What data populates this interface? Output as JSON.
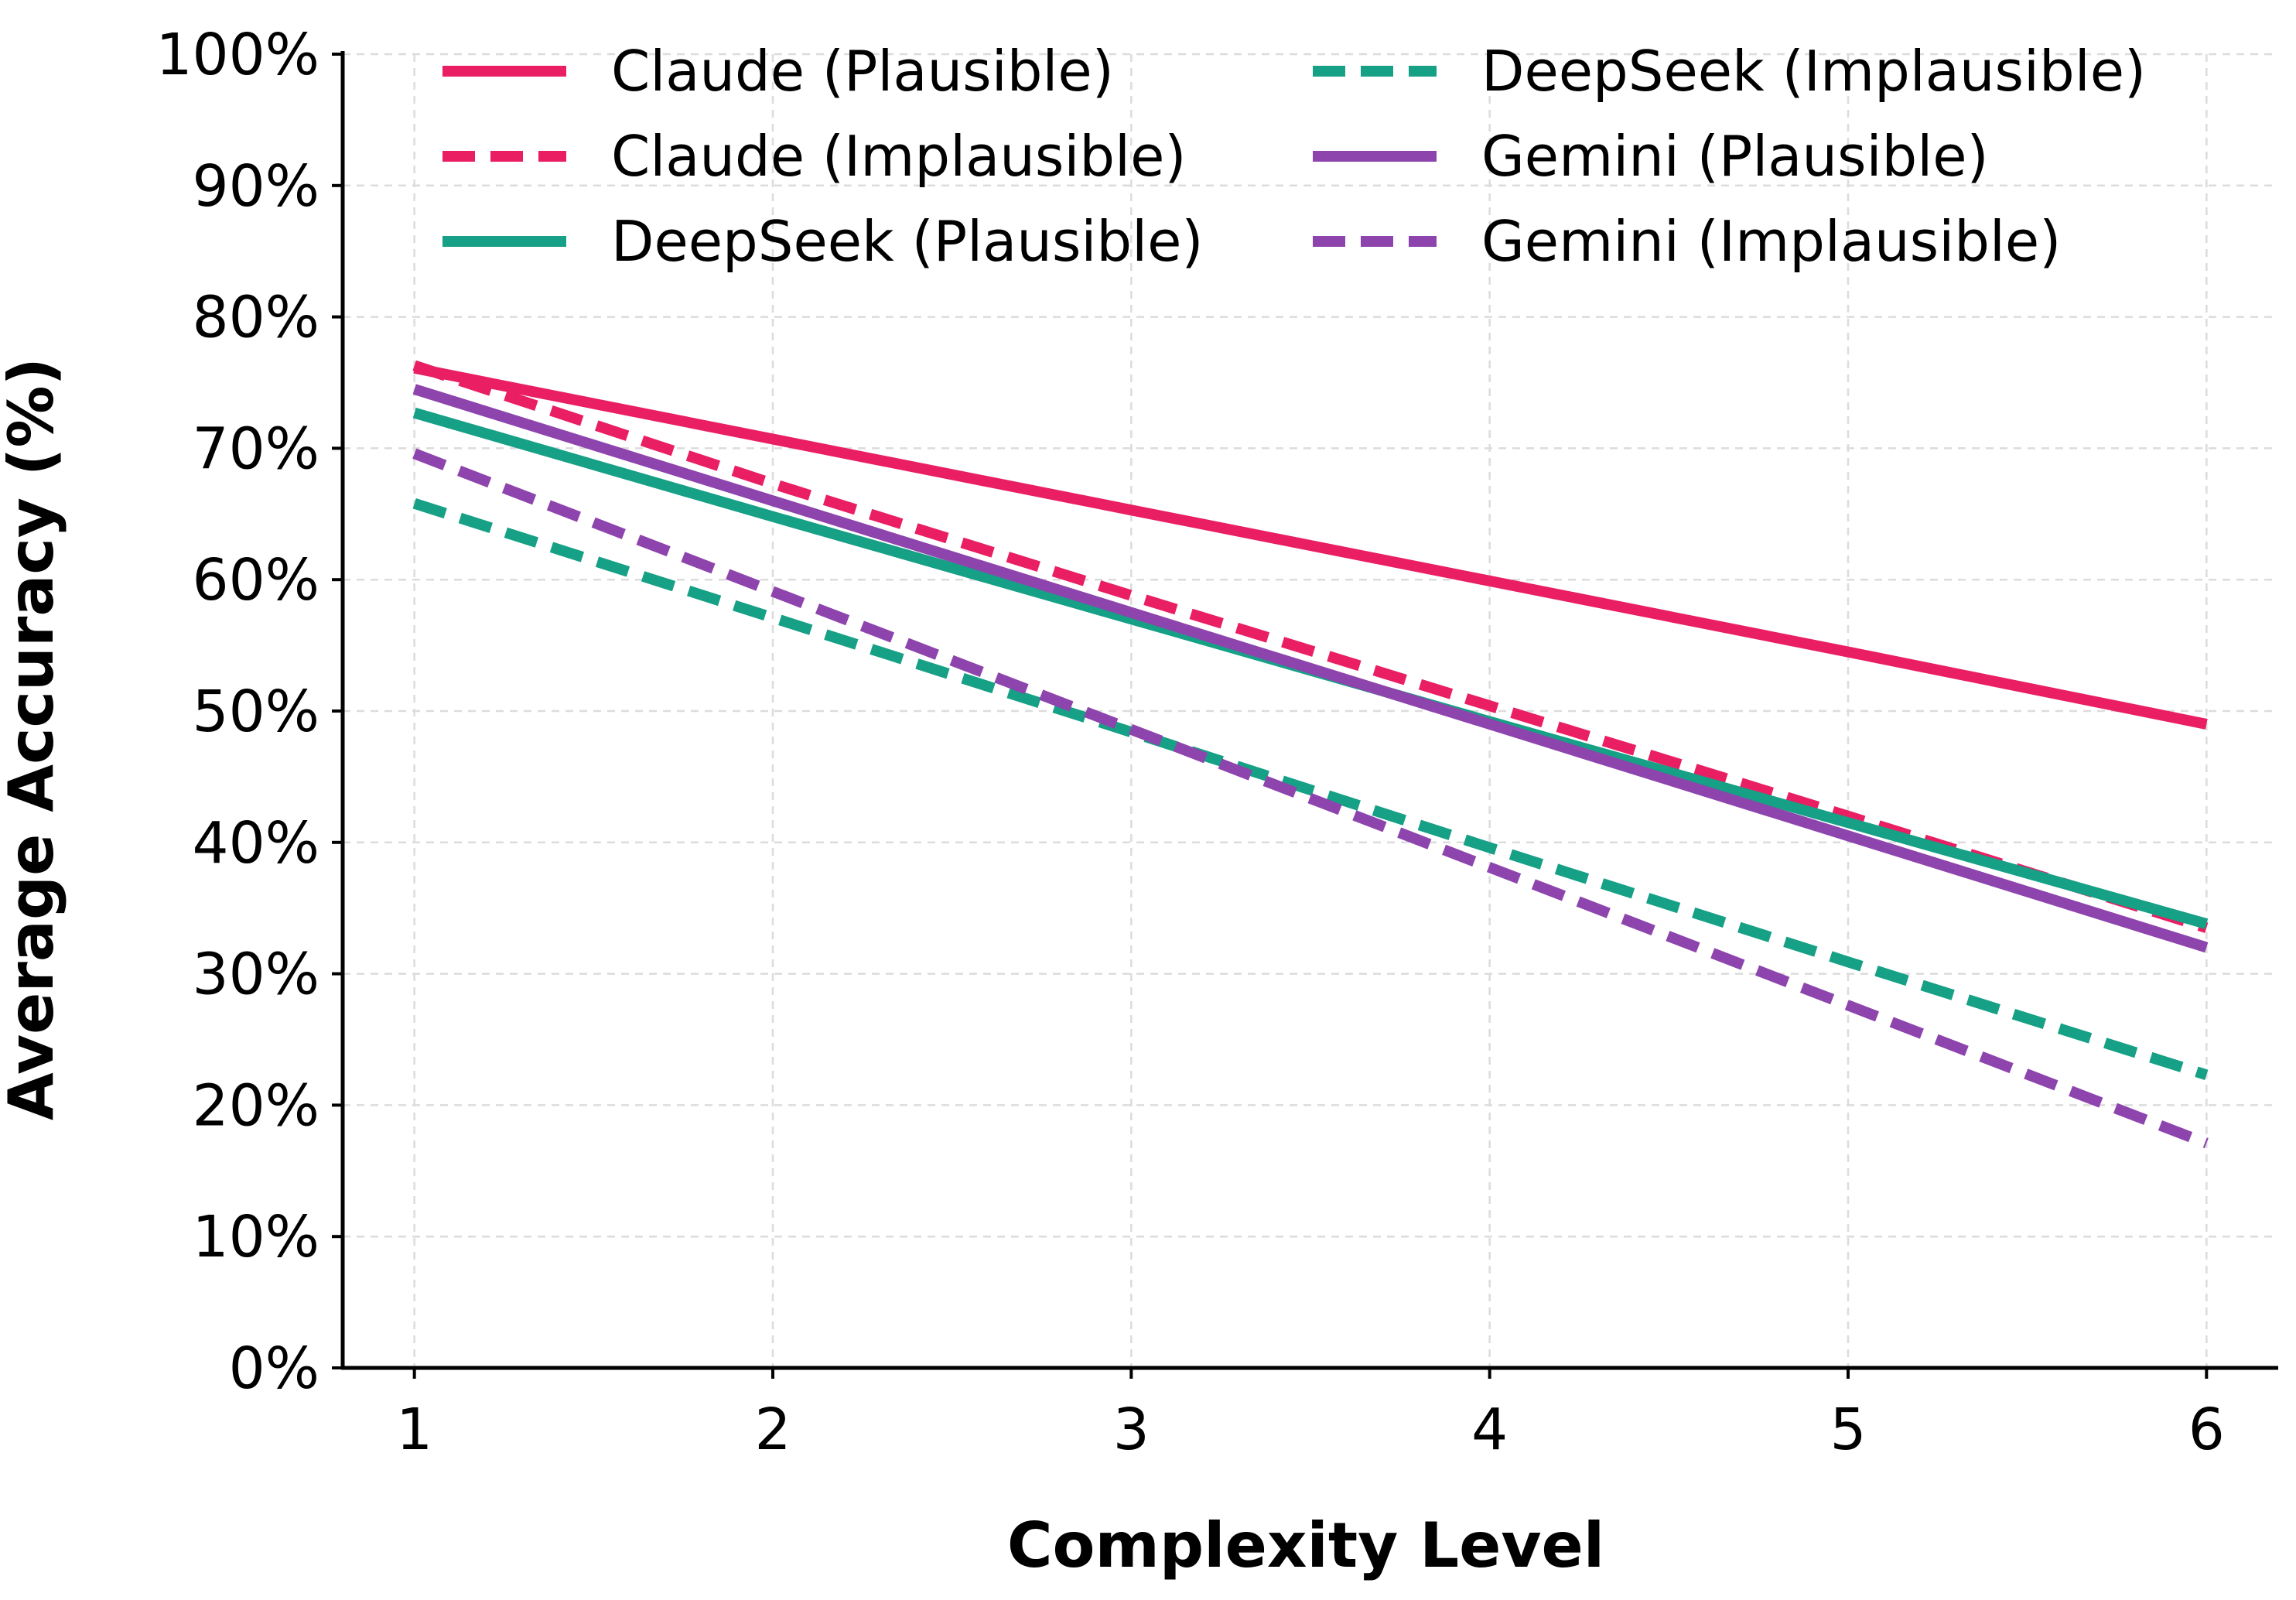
{
  "chart_data": {
    "type": "line",
    "title": "",
    "xlabel": "Complexity Level",
    "ylabel": "Average Accuracy (%)",
    "x": [
      1,
      2,
      3,
      4,
      5,
      6
    ],
    "x_tick_labels": [
      "1",
      "2",
      "3",
      "4",
      "5",
      "6"
    ],
    "xlim": [
      0.8,
      6.2
    ],
    "ylim": [
      0,
      100
    ],
    "y_ticks": [
      0,
      10,
      20,
      30,
      40,
      50,
      60,
      70,
      80,
      90,
      100
    ],
    "y_tick_labels": [
      "0%",
      "10%",
      "20%",
      "30%",
      "40%",
      "50%",
      "60%",
      "70%",
      "80%",
      "90%",
      "100%"
    ],
    "grid": true,
    "legend_position": "top, two columns",
    "series": [
      {
        "name": "Claude (Plausible)",
        "color": "#E91E63",
        "style": "solid",
        "values": [
          76.1,
          70.7,
          65.3,
          59.9,
          54.5,
          49.0
        ]
      },
      {
        "name": "Claude (Implausible)",
        "color": "#E91E63",
        "style": "dashed",
        "values": [
          76.3,
          67.3,
          58.8,
          50.4,
          42.0,
          33.5
        ]
      },
      {
        "name": "DeepSeek (Plausible)",
        "color": "#16A085",
        "style": "solid",
        "values": [
          72.7,
          64.8,
          57.0,
          49.2,
          41.5,
          33.8
        ]
      },
      {
        "name": "DeepSeek (Implausible)",
        "color": "#16A085",
        "style": "dashed",
        "values": [
          65.8,
          57.1,
          48.4,
          39.6,
          30.9,
          22.3
        ]
      },
      {
        "name": "Gemini (Plausible)",
        "color": "#8E44AD",
        "style": "solid",
        "values": [
          74.5,
          66.0,
          57.5,
          49.0,
          40.5,
          32.0
        ]
      },
      {
        "name": "Gemini (Implausible)",
        "color": "#8E44AD",
        "style": "dashed",
        "values": [
          69.6,
          59.1,
          48.6,
          38.1,
          27.6,
          17.1
        ]
      }
    ]
  }
}
